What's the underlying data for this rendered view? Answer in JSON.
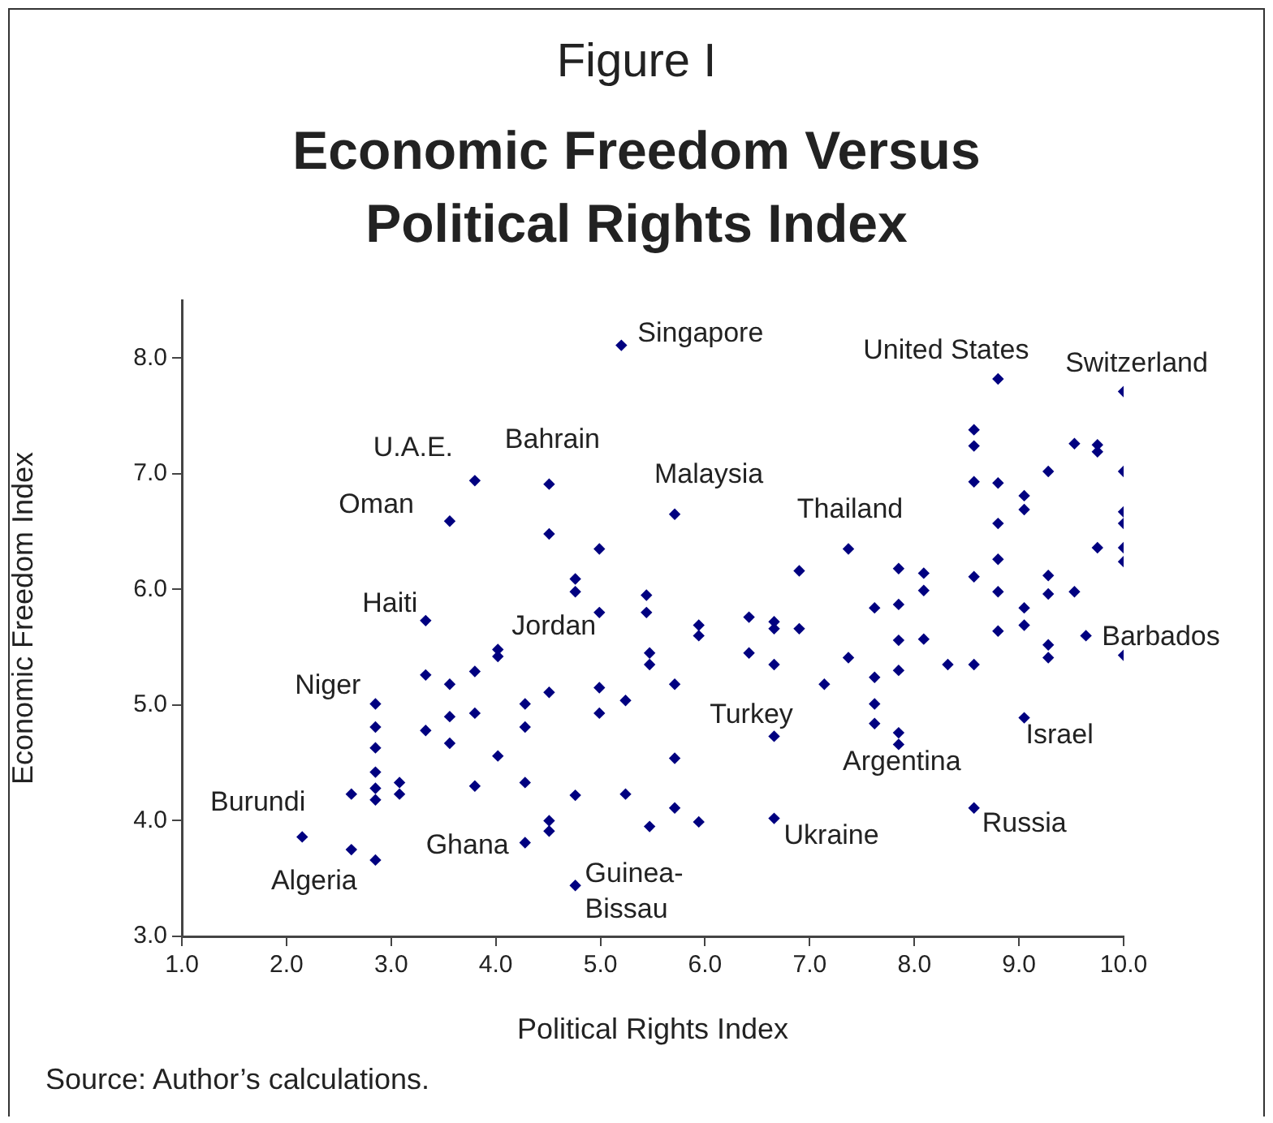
{
  "chart_data": {
    "type": "scatter",
    "title": "Figure I",
    "subtitle": "Economic Freedom Versus Political Rights Index",
    "xlabel": "Political Rights Index",
    "ylabel": "Economic Freedom Index",
    "xlim": [
      1,
      10
    ],
    "ylim": [
      3,
      8.5
    ],
    "xticks": [
      {
        "value": 1,
        "label": "1.0"
      },
      {
        "value": 2,
        "label": "2.0"
      },
      {
        "value": 3,
        "label": "3.0"
      },
      {
        "value": 4,
        "label": "4.0"
      },
      {
        "value": 5,
        "label": "5.0"
      },
      {
        "value": 6,
        "label": "6.0"
      },
      {
        "value": 7,
        "label": "7.0"
      },
      {
        "value": 8,
        "label": "8.0"
      },
      {
        "value": 9,
        "label": "9.0"
      },
      {
        "value": 10,
        "label": "10.0"
      }
    ],
    "yticks": [
      {
        "value": 3,
        "label": "3.0"
      },
      {
        "value": 4,
        "label": "4.0"
      },
      {
        "value": 5,
        "label": "5.0"
      },
      {
        "value": 6,
        "label": "6.0"
      },
      {
        "value": 7,
        "label": "7.0"
      },
      {
        "value": 8,
        "label": "8.0"
      }
    ],
    "grid": false,
    "legend": false,
    "marker": "diamond",
    "series": [
      {
        "color": "#000080",
        "x": [
          5.2,
          3.8,
          4.51,
          3.56,
          4.51,
          4.99,
          4.76,
          4.76,
          5.44,
          3.33,
          4.99,
          5.44,
          8.8,
          8.57,
          8.57,
          9.53,
          9.75,
          9.75,
          9.28,
          8.57,
          8.8,
          9.05,
          9.05,
          8.8,
          5.71,
          7.37,
          9.75,
          8.8,
          7.85,
          8.09,
          6.9,
          8.57,
          9.28,
          8.09,
          8.8,
          9.28,
          9.53,
          7.85,
          7.62,
          9.05,
          5.94,
          5.94,
          6.42,
          6.66,
          6.66,
          6.9,
          8.8,
          9.05,
          9.64,
          7.85,
          8.09,
          9.28,
          10,
          10,
          10,
          10,
          10,
          10,
          10,
          5.47,
          5.47,
          6.42,
          6.66,
          5.71,
          5.24,
          7.14,
          7.37,
          7.62,
          7.85,
          8.32,
          8.57,
          9.28,
          7.62,
          7.62,
          7.85,
          7.85,
          6.66,
          9.05,
          5.71,
          5.24,
          5.71,
          5.47,
          5.94,
          6.66,
          8.57,
          4.02,
          4.02,
          3.33,
          3.56,
          3.8,
          2.85,
          4.28,
          4.51,
          4.99,
          2.85,
          3.33,
          3.56,
          3.8,
          4.28,
          4.99,
          2.85,
          3.56,
          4.02,
          2.85,
          2.85,
          2.85,
          3.08,
          3.08,
          2.62,
          3.8,
          4.28,
          4.76,
          2.15,
          2.62,
          2.85,
          4.28,
          4.51,
          4.51,
          4.76
        ],
        "values": [
          8.11,
          6.94,
          6.91,
          6.59,
          6.48,
          6.35,
          6.09,
          5.98,
          5.95,
          5.73,
          5.8,
          5.8,
          7.82,
          7.38,
          7.24,
          7.26,
          7.25,
          7.19,
          7.02,
          6.93,
          6.92,
          6.81,
          6.69,
          6.57,
          6.65,
          6.35,
          6.36,
          6.26,
          6.18,
          6.14,
          6.16,
          6.11,
          6.12,
          5.99,
          5.98,
          5.96,
          5.98,
          5.87,
          5.84,
          5.84,
          5.69,
          5.6,
          5.76,
          5.72,
          5.66,
          5.66,
          5.64,
          5.69,
          5.6,
          5.56,
          5.57,
          5.52,
          7.71,
          7.02,
          6.67,
          6.57,
          6.36,
          6.24,
          5.43,
          5.45,
          5.35,
          5.45,
          5.35,
          5.18,
          5.04,
          5.18,
          5.41,
          5.24,
          5.3,
          5.35,
          5.35,
          5.41,
          5.01,
          4.84,
          4.76,
          4.66,
          4.73,
          4.89,
          4.54,
          4.23,
          4.11,
          3.95,
          3.99,
          4.02,
          4.11,
          5.48,
          5.42,
          5.26,
          5.18,
          5.29,
          5.01,
          5.01,
          5.11,
          5.15,
          4.81,
          4.78,
          4.9,
          4.93,
          4.81,
          4.93,
          4.63,
          4.67,
          4.56,
          4.42,
          4.28,
          4.18,
          4.33,
          4.23,
          4.23,
          4.3,
          4.33,
          4.22,
          3.86,
          3.75,
          3.66,
          3.81,
          4.0,
          3.91,
          3.44
        ]
      }
    ],
    "annotations": [
      {
        "text": "Singapore",
        "x": 5.2,
        "y": 8.11
      },
      {
        "text": "United States",
        "x": 8.8,
        "y": 7.82
      },
      {
        "text": "Switzerland",
        "x": 10,
        "y": 7.71
      },
      {
        "text": "U.A.E.",
        "x": 3.8,
        "y": 6.94
      },
      {
        "text": "Bahrain",
        "x": 4.51,
        "y": 6.91
      },
      {
        "text": "Malaysia",
        "x": 5.71,
        "y": 6.65
      },
      {
        "text": "Thailand",
        "x": 7.37,
        "y": 6.35
      },
      {
        "text": "Oman",
        "x": 3.56,
        "y": 6.59
      },
      {
        "text": "Haiti",
        "x": 3.33,
        "y": 5.73
      },
      {
        "text": "Jordan",
        "x": 4.99,
        "y": 5.8
      },
      {
        "text": "Niger",
        "x": 2.85,
        "y": 5.01
      },
      {
        "text": "Burundi",
        "x": 2.15,
        "y": 3.86
      },
      {
        "text": "Algeria",
        "x": 2.62,
        "y": 3.75
      },
      {
        "text": "Ghana",
        "x": 4.28,
        "y": 3.81
      },
      {
        "text": "Guinea-Bissau",
        "x": 4.76,
        "y": 3.44
      },
      {
        "text": "Turkey",
        "x": 6.66,
        "y": 4.73
      },
      {
        "text": "Ukraine",
        "x": 6.66,
        "y": 4.02
      },
      {
        "text": "Argentina",
        "x": 7.85,
        "y": 4.66
      },
      {
        "text": "Israel",
        "x": 9.05,
        "y": 4.89
      },
      {
        "text": "Russia",
        "x": 8.57,
        "y": 4.11
      },
      {
        "text": "Barbados",
        "x": 10,
        "y": 5.43
      },
      "Source: Author’s calculations."
    ]
  }
}
